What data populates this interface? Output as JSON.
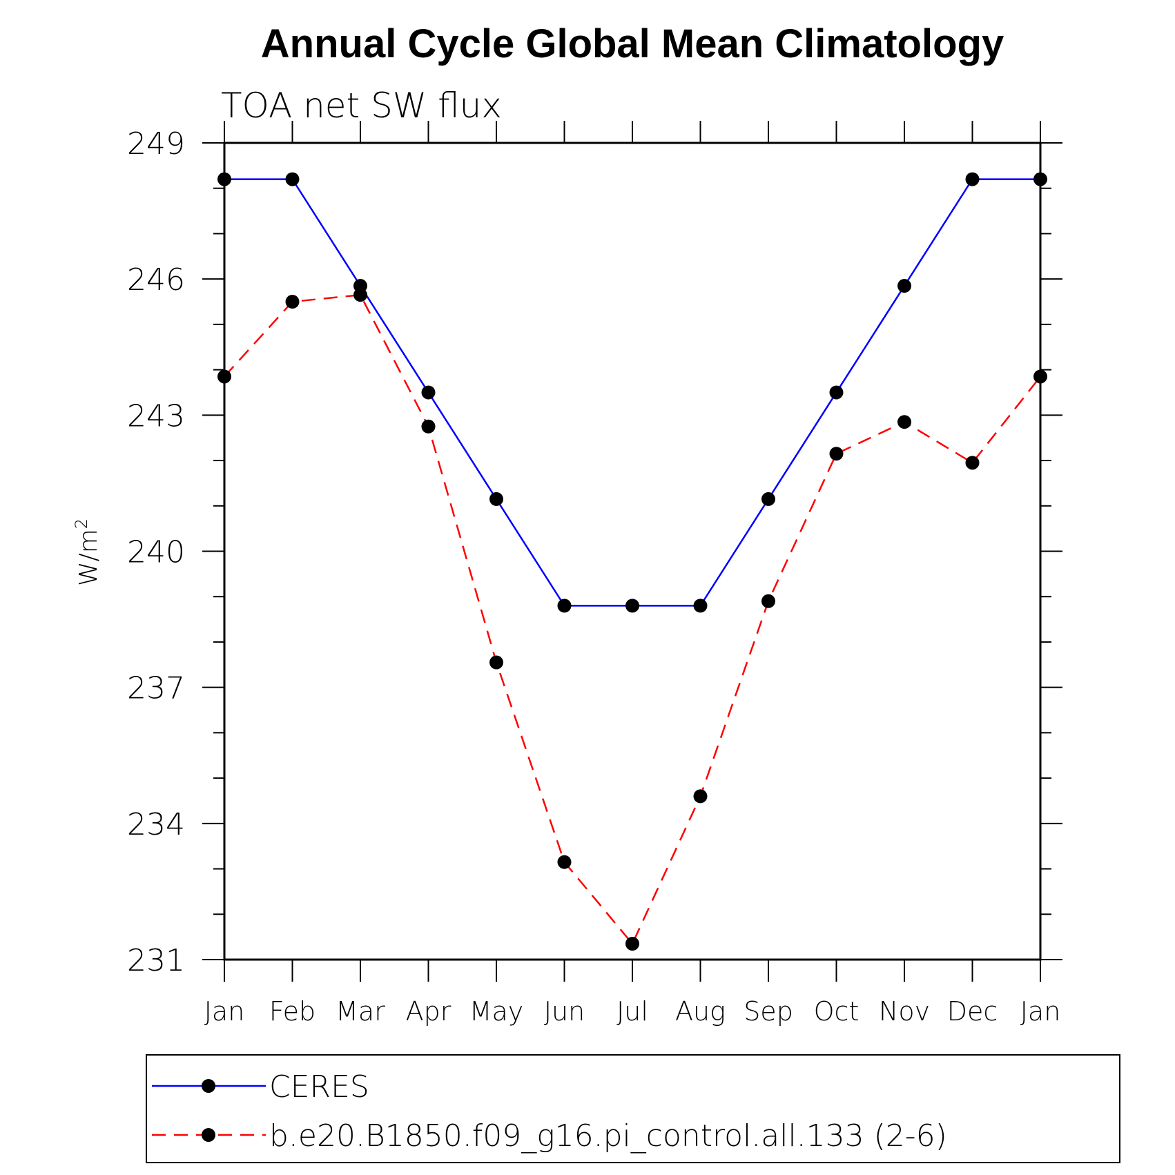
{
  "chart_data": {
    "type": "line",
    "title": "Annual Cycle Global Mean Climatology",
    "subtitle": "TOA net SW flux",
    "xlabel": "",
    "ylabel": "W/m",
    "ylabel_superscript": "2",
    "categories": [
      "Jan",
      "Feb",
      "Mar",
      "Apr",
      "May",
      "Jun",
      "Jul",
      "Aug",
      "Sep",
      "Oct",
      "Nov",
      "Dec",
      "Jan"
    ],
    "ylim": [
      231,
      249
    ],
    "yticks": [
      "231",
      "234",
      "237",
      "240",
      "243",
      "246",
      "249"
    ],
    "grid": false,
    "legend_position": "bottom",
    "series": [
      {
        "name": "CERES",
        "color": "#0000ff",
        "dash": "solid",
        "marker": "filled-circle",
        "values": [
          248.2,
          248.2,
          245.85,
          243.5,
          241.15,
          238.8,
          238.8,
          238.8,
          241.15,
          243.5,
          245.85,
          248.2,
          248.2
        ]
      },
      {
        "name": "b.e20.B1850.f09_g16.pi_control.all.133 (2-6)",
        "color": "#ff0000",
        "dash": "dashed",
        "marker": "filled-circle",
        "values": [
          243.85,
          245.5,
          245.65,
          242.75,
          237.55,
          233.15,
          231.35,
          234.6,
          238.9,
          242.15,
          242.85,
          241.95,
          243.85
        ]
      }
    ]
  }
}
